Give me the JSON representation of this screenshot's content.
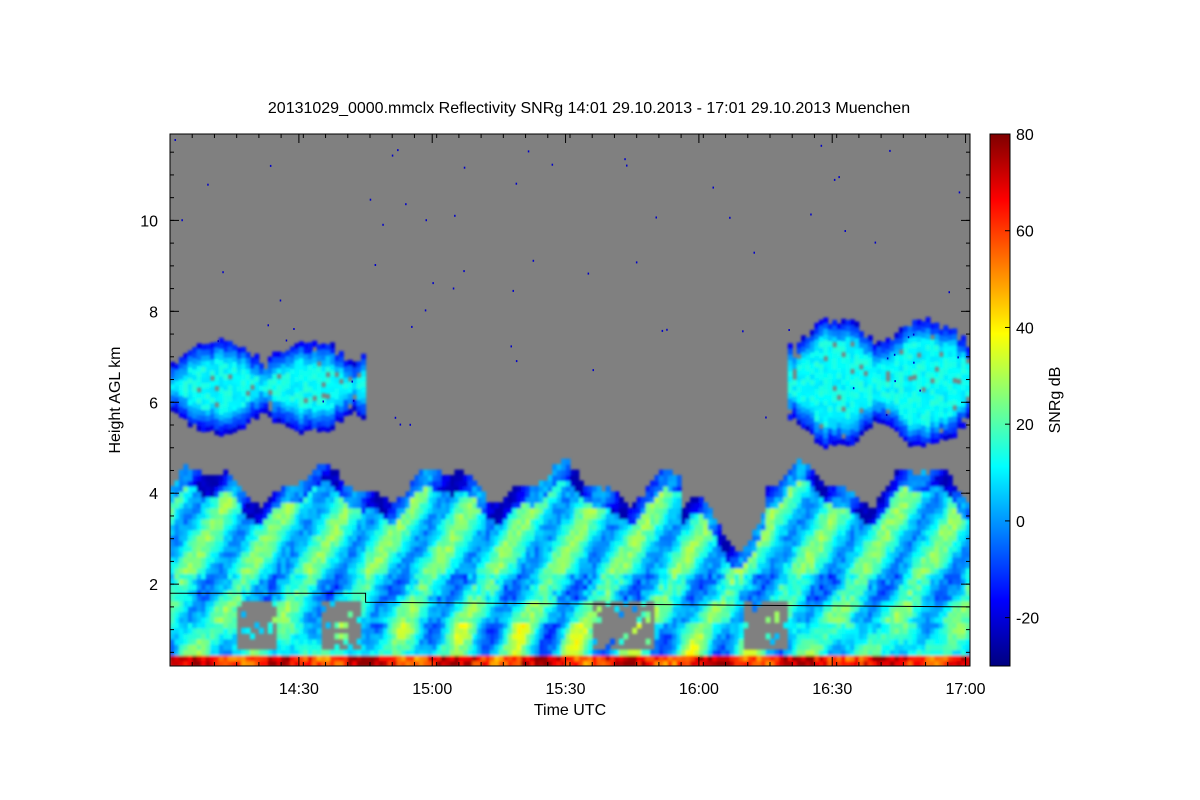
{
  "chart_data": {
    "type": "heatmap",
    "title": "20131029_0000.mmclx Reflectivity SNRg   14:01 29.10.2013 - 17:01 29.10.2013 Muenchen",
    "xlabel": "Time UTC",
    "ylabel": "Height AGL km",
    "xlim": [
      "14:01",
      "17:01"
    ],
    "x_ticks": [
      "14:30",
      "15:00",
      "15:30",
      "16:00",
      "16:30",
      "17:00"
    ],
    "ylim": [
      0.2,
      11.9
    ],
    "y_ticks": [
      "2",
      "4",
      "6",
      "8",
      "10"
    ],
    "colorbar": {
      "label": "SNRg dB",
      "range": [
        -30,
        80
      ],
      "ticks": [
        "-20",
        "0",
        "20",
        "40",
        "60",
        "80"
      ],
      "colormap": [
        "#00007f",
        "#0000ff",
        "#007fff",
        "#00ffff",
        "#7fff7f",
        "#ffff00",
        "#ff7f00",
        "#ff0000",
        "#7f0000"
      ]
    },
    "background_color": "#808080",
    "cloud_layers": [
      {
        "name": "lower",
        "time_range": [
          "14:01",
          "17:01"
        ],
        "height_km": [
          0.2,
          4.5
        ],
        "snr_db": [
          -25,
          75
        ]
      },
      {
        "name": "mid-left",
        "time_range": [
          "14:01",
          "14:45"
        ],
        "height_km": [
          5.3,
          7.3
        ],
        "snr_db": [
          -25,
          15
        ]
      },
      {
        "name": "mid-right",
        "time_range": [
          "16:20",
          "17:01"
        ],
        "height_km": [
          5.0,
          7.8
        ],
        "snr_db": [
          -25,
          15
        ]
      }
    ],
    "boundary_line": [
      {
        "time": "14:01",
        "height_km": 1.8
      },
      {
        "time": "14:45",
        "height_km": 1.8
      },
      {
        "time": "14:45",
        "height_km": 1.6
      },
      {
        "time": "17:01",
        "height_km": 1.5
      }
    ]
  }
}
